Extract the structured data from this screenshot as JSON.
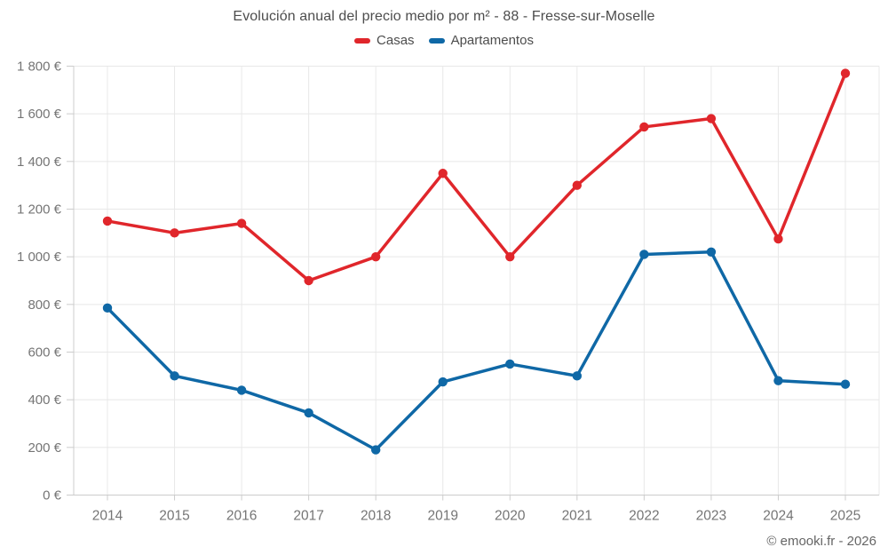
{
  "header": {
    "title": "Evolución anual del precio medio por m² - 88 - Fresse-sur-Moselle"
  },
  "footer": {
    "credit": "© emooki.fr - 2026"
  },
  "colors": {
    "bg": "#ffffff",
    "grid": "#e8e8e8",
    "axis": "#cccccc",
    "tick-text": "#757575",
    "title-text": "#4d4d4d",
    "legend-text": "#4d4d4d",
    "footer-text": "#666666"
  },
  "chart_data": {
    "type": "line",
    "title": "Evolución anual del precio medio por m² - 88 - Fresse-sur-Moselle",
    "categories": [
      "2014",
      "2015",
      "2016",
      "2017",
      "2018",
      "2019",
      "2020",
      "2021",
      "2022",
      "2023",
      "2024",
      "2025"
    ],
    "series": [
      {
        "name": "Casas",
        "color": "#e0262b",
        "values": [
          1150,
          1100,
          1140,
          900,
          1000,
          1350,
          1000,
          1300,
          1545,
          1580,
          1075,
          1770
        ]
      },
      {
        "name": "Apartamentos",
        "color": "#0f68a6",
        "values": [
          785,
          500,
          440,
          345,
          190,
          475,
          550,
          500,
          1010,
          1020,
          480,
          465
        ]
      }
    ],
    "xlabel": "",
    "ylabel": "",
    "ylim": [
      0,
      1800
    ],
    "ytick_step": 200,
    "ytick_suffix": " €",
    "grid": true,
    "legend_position": "top",
    "marker": "circle"
  }
}
